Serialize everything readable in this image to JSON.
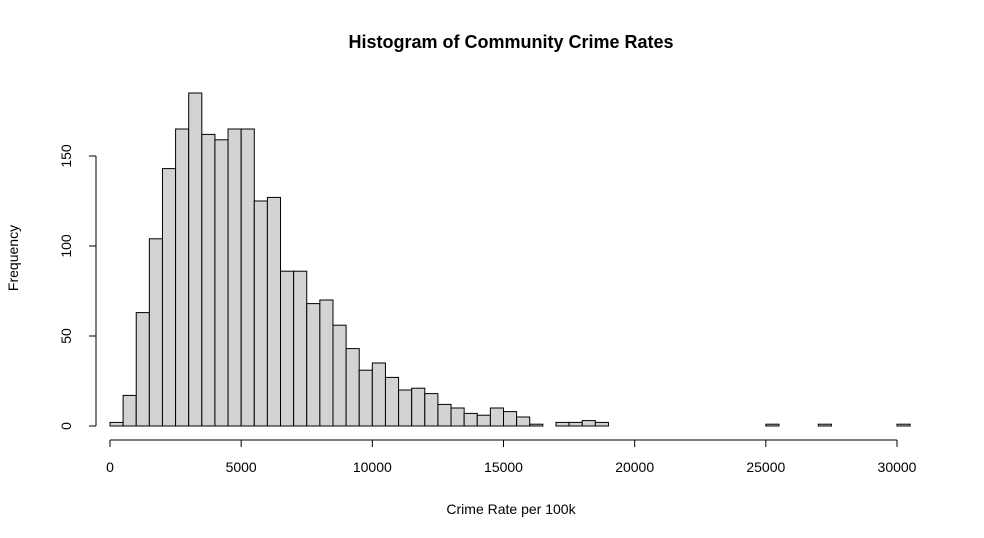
{
  "chart_data": {
    "type": "bar",
    "title": "Histogram of Community Crime Rates",
    "xlabel": "Crime Rate per 100k",
    "ylabel": "Frequency",
    "bin_width": 500,
    "bin_start": 0,
    "xticks": [
      0,
      5000,
      10000,
      15000,
      20000,
      25000,
      30000
    ],
    "xtick_labels": [
      "0",
      "5000",
      "10000",
      "15000",
      "20000",
      "25000",
      "30000"
    ],
    "yticks": [
      0,
      50,
      100,
      150
    ],
    "ytick_labels": [
      "0",
      "50",
      "100",
      "150"
    ],
    "xlim": [
      0,
      30500
    ],
    "ylim": [
      0,
      185
    ],
    "categories": [
      "0-500",
      "500-1000",
      "1000-1500",
      "1500-2000",
      "2000-2500",
      "2500-3000",
      "3000-3500",
      "3500-4000",
      "4000-4500",
      "4500-5000",
      "5000-5500",
      "5500-6000",
      "6000-6500",
      "6500-7000",
      "7000-7500",
      "7500-8000",
      "8000-8500",
      "8500-9000",
      "9000-9500",
      "9500-10000",
      "10000-10500",
      "10500-11000",
      "11000-11500",
      "11500-12000",
      "12000-12500",
      "12500-13000",
      "13000-13500",
      "13500-14000",
      "14000-14500",
      "14500-15000",
      "15000-15500",
      "15500-16000",
      "16000-16500",
      "16500-17000",
      "17000-17500",
      "17500-18000",
      "18000-18500",
      "18500-19000",
      "19000-19500",
      "19500-20000",
      "20000-20500",
      "20500-21000",
      "21000-21500",
      "21500-22000",
      "22000-22500",
      "22500-23000",
      "23000-23500",
      "23500-24000",
      "24000-24500",
      "24500-25000",
      "25000-25500",
      "25500-26000",
      "26000-26500",
      "26500-27000",
      "27000-27500",
      "27500-28000",
      "28000-28500",
      "28500-29000",
      "29000-29500",
      "29500-30000",
      "30000-30500"
    ],
    "values": [
      2,
      17,
      63,
      104,
      143,
      165,
      185,
      162,
      159,
      165,
      165,
      125,
      127,
      86,
      86,
      68,
      70,
      56,
      43,
      31,
      35,
      27,
      20,
      21,
      18,
      12,
      10,
      7,
      6,
      10,
      8,
      5,
      1,
      0,
      2,
      2,
      3,
      2,
      0,
      0,
      0,
      0,
      0,
      0,
      0,
      0,
      0,
      0,
      0,
      0,
      1,
      0,
      0,
      0,
      1,
      0,
      0,
      0,
      0,
      0,
      1
    ]
  }
}
